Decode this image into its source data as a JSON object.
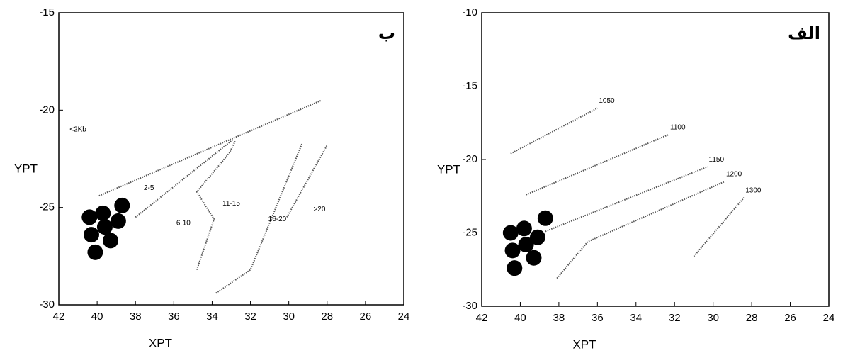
{
  "chart_data": [
    {
      "type": "scatter",
      "title": "ب",
      "x_label": "XPT",
      "y_label": "YPT",
      "xlim": [
        42,
        24
      ],
      "ylim": [
        -30,
        -15
      ],
      "xticks": [
        42,
        40,
        38,
        36,
        34,
        32,
        30,
        28,
        26,
        24
      ],
      "yticks": [
        -15,
        -20,
        -25,
        -30
      ],
      "points": {
        "color": "#000000",
        "x": [
          40.4,
          39.7,
          38.7,
          40.3,
          39.6,
          38.9,
          39.3,
          40.1
        ],
        "y": [
          -25.5,
          -25.3,
          -24.9,
          -26.4,
          -26.0,
          -25.7,
          -26.7,
          -27.3
        ]
      },
      "line_color": "#555555",
      "lines": [
        {
          "x": [
            39.9,
            28.3
          ],
          "y": [
            -24.4,
            -19.5
          ]
        },
        {
          "x": [
            38.0,
            32.9
          ],
          "y": [
            -25.5,
            -21.5
          ]
        },
        {
          "x": [
            34.8,
            33.9,
            34.8,
            33.1,
            32.8
          ],
          "y": [
            -28.2,
            -25.6,
            -24.2,
            -22.2,
            -21.6
          ]
        },
        {
          "x": [
            33.8,
            32.0,
            29.3
          ],
          "y": [
            -29.4,
            -28.2,
            -21.7
          ]
        },
        {
          "x": [
            30.1,
            28.0
          ],
          "y": [
            -25.5,
            -21.8
          ]
        }
      ],
      "annotations": [
        {
          "text": "<2Kb",
          "x": 41.0,
          "y": -21.0
        },
        {
          "text": "2-5",
          "x": 37.3,
          "y": -24.0
        },
        {
          "text": "6-10",
          "x": 35.5,
          "y": -25.8
        },
        {
          "text": "11-15",
          "x": 33.0,
          "y": -24.8
        },
        {
          "text": "16-20",
          "x": 30.6,
          "y": -25.6
        },
        {
          "text": ">20",
          "x": 28.4,
          "y": -25.1
        }
      ]
    },
    {
      "type": "scatter",
      "title": "الف",
      "x_label": "XPT",
      "y_label": "YPT",
      "xlim": [
        42,
        24
      ],
      "ylim": [
        -30,
        -10
      ],
      "xticks": [
        42,
        40,
        38,
        36,
        34,
        32,
        30,
        28,
        26,
        24
      ],
      "yticks": [
        -10,
        -15,
        -20,
        -25,
        -30
      ],
      "points": {
        "color": "#000000",
        "x": [
          40.5,
          39.8,
          38.7,
          40.4,
          39.7,
          39.1,
          39.3,
          40.3
        ],
        "y": [
          -25.0,
          -24.7,
          -24.0,
          -26.2,
          -25.8,
          -25.3,
          -26.7,
          -27.4
        ]
      },
      "line_color": "#555555",
      "lines": [
        {
          "label": "1050",
          "x": [
            40.5,
            36.0
          ],
          "y": [
            -19.6,
            -16.5
          ]
        },
        {
          "label": "1100",
          "x": [
            39.7,
            32.3
          ],
          "y": [
            -22.4,
            -18.3
          ]
        },
        {
          "label": "1150",
          "x": [
            38.7,
            30.3
          ],
          "y": [
            -24.9,
            -20.5
          ]
        },
        {
          "label": "1200",
          "x": [
            38.1,
            36.5,
            29.4
          ],
          "y": [
            -28.1,
            -25.6,
            -21.5
          ]
        },
        {
          "label": "1300",
          "x": [
            31.0,
            28.4
          ],
          "y": [
            -26.6,
            -22.6
          ]
        }
      ],
      "annotations": []
    }
  ]
}
